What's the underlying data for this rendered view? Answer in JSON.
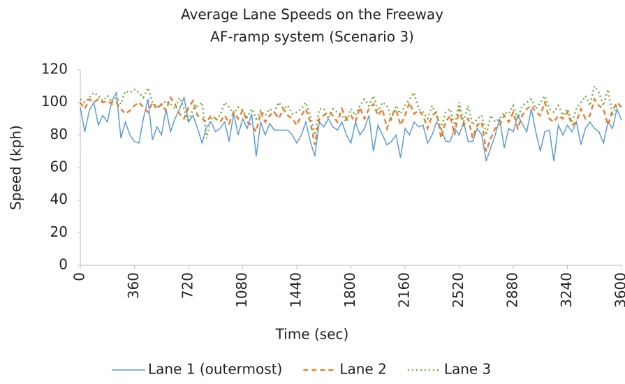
{
  "chart_data": {
    "type": "line",
    "title": "Average Lane Speeds on the Freeway",
    "subtitle": "AF-ramp system (Scenario 3)",
    "x_label": "Time (sec)",
    "y_label": "Speed (kph)",
    "xlim": [
      0,
      3600
    ],
    "xticks": [
      0,
      360,
      720,
      1080,
      1440,
      1800,
      2160,
      2520,
      2880,
      3240,
      3600
    ],
    "ylim": [
      0,
      120
    ],
    "yticks": [
      0,
      20,
      40,
      60,
      80,
      100,
      120
    ],
    "grid": false,
    "legend": "bottom",
    "x": [
      0,
      30,
      60,
      90,
      120,
      150,
      180,
      210,
      240,
      270,
      300,
      330,
      360,
      390,
      420,
      450,
      480,
      510,
      540,
      570,
      600,
      630,
      660,
      690,
      720,
      750,
      780,
      810,
      840,
      870,
      900,
      930,
      960,
      990,
      1020,
      1050,
      1080,
      1110,
      1140,
      1170,
      1200,
      1230,
      1260,
      1290,
      1320,
      1350,
      1380,
      1410,
      1440,
      1470,
      1500,
      1530,
      1560,
      1590,
      1620,
      1650,
      1680,
      1710,
      1740,
      1770,
      1800,
      1830,
      1860,
      1890,
      1920,
      1950,
      1980,
      2010,
      2040,
      2070,
      2100,
      2130,
      2160,
      2190,
      2220,
      2250,
      2280,
      2310,
      2340,
      2370,
      2400,
      2430,
      2460,
      2490,
      2520,
      2550,
      2580,
      2610,
      2640,
      2670,
      2700,
      2730,
      2760,
      2790,
      2820,
      2850,
      2880,
      2910,
      2940,
      2970,
      3000,
      3030,
      3060,
      3090,
      3120,
      3150,
      3180,
      3210,
      3240,
      3270,
      3300,
      3330,
      3360,
      3390,
      3420,
      3450,
      3480,
      3510,
      3540,
      3570,
      3600
    ],
    "series": [
      {
        "name": "Lane 1 (outermost)",
        "color": "#5b9bd5",
        "style": "solid",
        "values": [
          97,
          82,
          95,
          100,
          86,
          92,
          88,
          101,
          106,
          78,
          88,
          80,
          76,
          75,
          90,
          102,
          77,
          85,
          80,
          96,
          82,
          90,
          96,
          103,
          88,
          92,
          84,
          75,
          85,
          88,
          82,
          84,
          88,
          76,
          93,
          80,
          90,
          84,
          93,
          67,
          88,
          80,
          87,
          83,
          83,
          83,
          83,
          80,
          75,
          80,
          88,
          76,
          67,
          88,
          85,
          90,
          85,
          83,
          88,
          80,
          75,
          88,
          80,
          84,
          92,
          70,
          86,
          80,
          74,
          76,
          80,
          66,
          84,
          80,
          88,
          85,
          86,
          75,
          80,
          88,
          84,
          76,
          76,
          84,
          80,
          88,
          76,
          76,
          84,
          80,
          64,
          72,
          80,
          90,
          72,
          84,
          82,
          92,
          87,
          82,
          96,
          82,
          70,
          82,
          83,
          64,
          86,
          80,
          86,
          82,
          88,
          74,
          84,
          88,
          84,
          82,
          75,
          88,
          84,
          96,
          89
        ]
      },
      {
        "name": "Lane 2",
        "color": "#ed7d31",
        "style": "dashed",
        "values": [
          100,
          96,
          102,
          100,
          102,
          100,
          101,
          99,
          100,
          96,
          93,
          95,
          98,
          100,
          97,
          94,
          100,
          96,
          99,
          95,
          103,
          99,
          93,
          90,
          97,
          101,
          92,
          90,
          88,
          92,
          90,
          88,
          92,
          87,
          94,
          90,
          95,
          88,
          86,
          82,
          94,
          88,
          92,
          94,
          90,
          96,
          92,
          90,
          86,
          92,
          96,
          88,
          74,
          90,
          92,
          94,
          92,
          88,
          96,
          90,
          92,
          88,
          97,
          90,
          96,
          99,
          92,
          96,
          84,
          92,
          96,
          86,
          92,
          100,
          93,
          95,
          92,
          84,
          92,
          94,
          78,
          88,
          92,
          80,
          96,
          86,
          90,
          78,
          86,
          88,
          70,
          78,
          84,
          86,
          92,
          88,
          94,
          84,
          92,
          96,
          98,
          94,
          92,
          100,
          90,
          88,
          92,
          90,
          94,
          86,
          88,
          96,
          90,
          92,
          102,
          98,
          96,
          86,
          95,
          100,
          97
        ]
      },
      {
        "name": "Lane 3",
        "color": "#70ad47",
        "style": "dotted",
        "values": [
          102,
          100,
          103,
          106,
          104,
          101,
          104,
          100,
          103,
          99,
          107,
          106,
          108,
          106,
          103,
          109,
          100,
          97,
          98,
          101,
          99,
          96,
          103,
          96,
          88,
          96,
          98,
          100,
          78,
          90,
          90,
          92,
          100,
          97,
          93,
          97,
          95,
          91,
          96,
          90,
          95,
          92,
          96,
          94,
          100,
          96,
          98,
          93,
          94,
          96,
          100,
          92,
          80,
          96,
          96,
          90,
          96,
          94,
          92,
          88,
          96,
          92,
          98,
          102,
          98,
          104,
          95,
          100,
          98,
          90,
          98,
          93,
          98,
          102,
          106,
          96,
          94,
          90,
          98,
          92,
          84,
          94,
          96,
          86,
          100,
          88,
          98,
          86,
          90,
          92,
          80,
          92,
          88,
          90,
          94,
          93,
          98,
          90,
          98,
          100,
          102,
          96,
          100,
          104,
          96,
          94,
          98,
          92,
          96,
          88,
          96,
          100,
          104,
          98,
          110,
          106,
          98,
          108,
          92,
          98,
          98
        ]
      }
    ]
  }
}
